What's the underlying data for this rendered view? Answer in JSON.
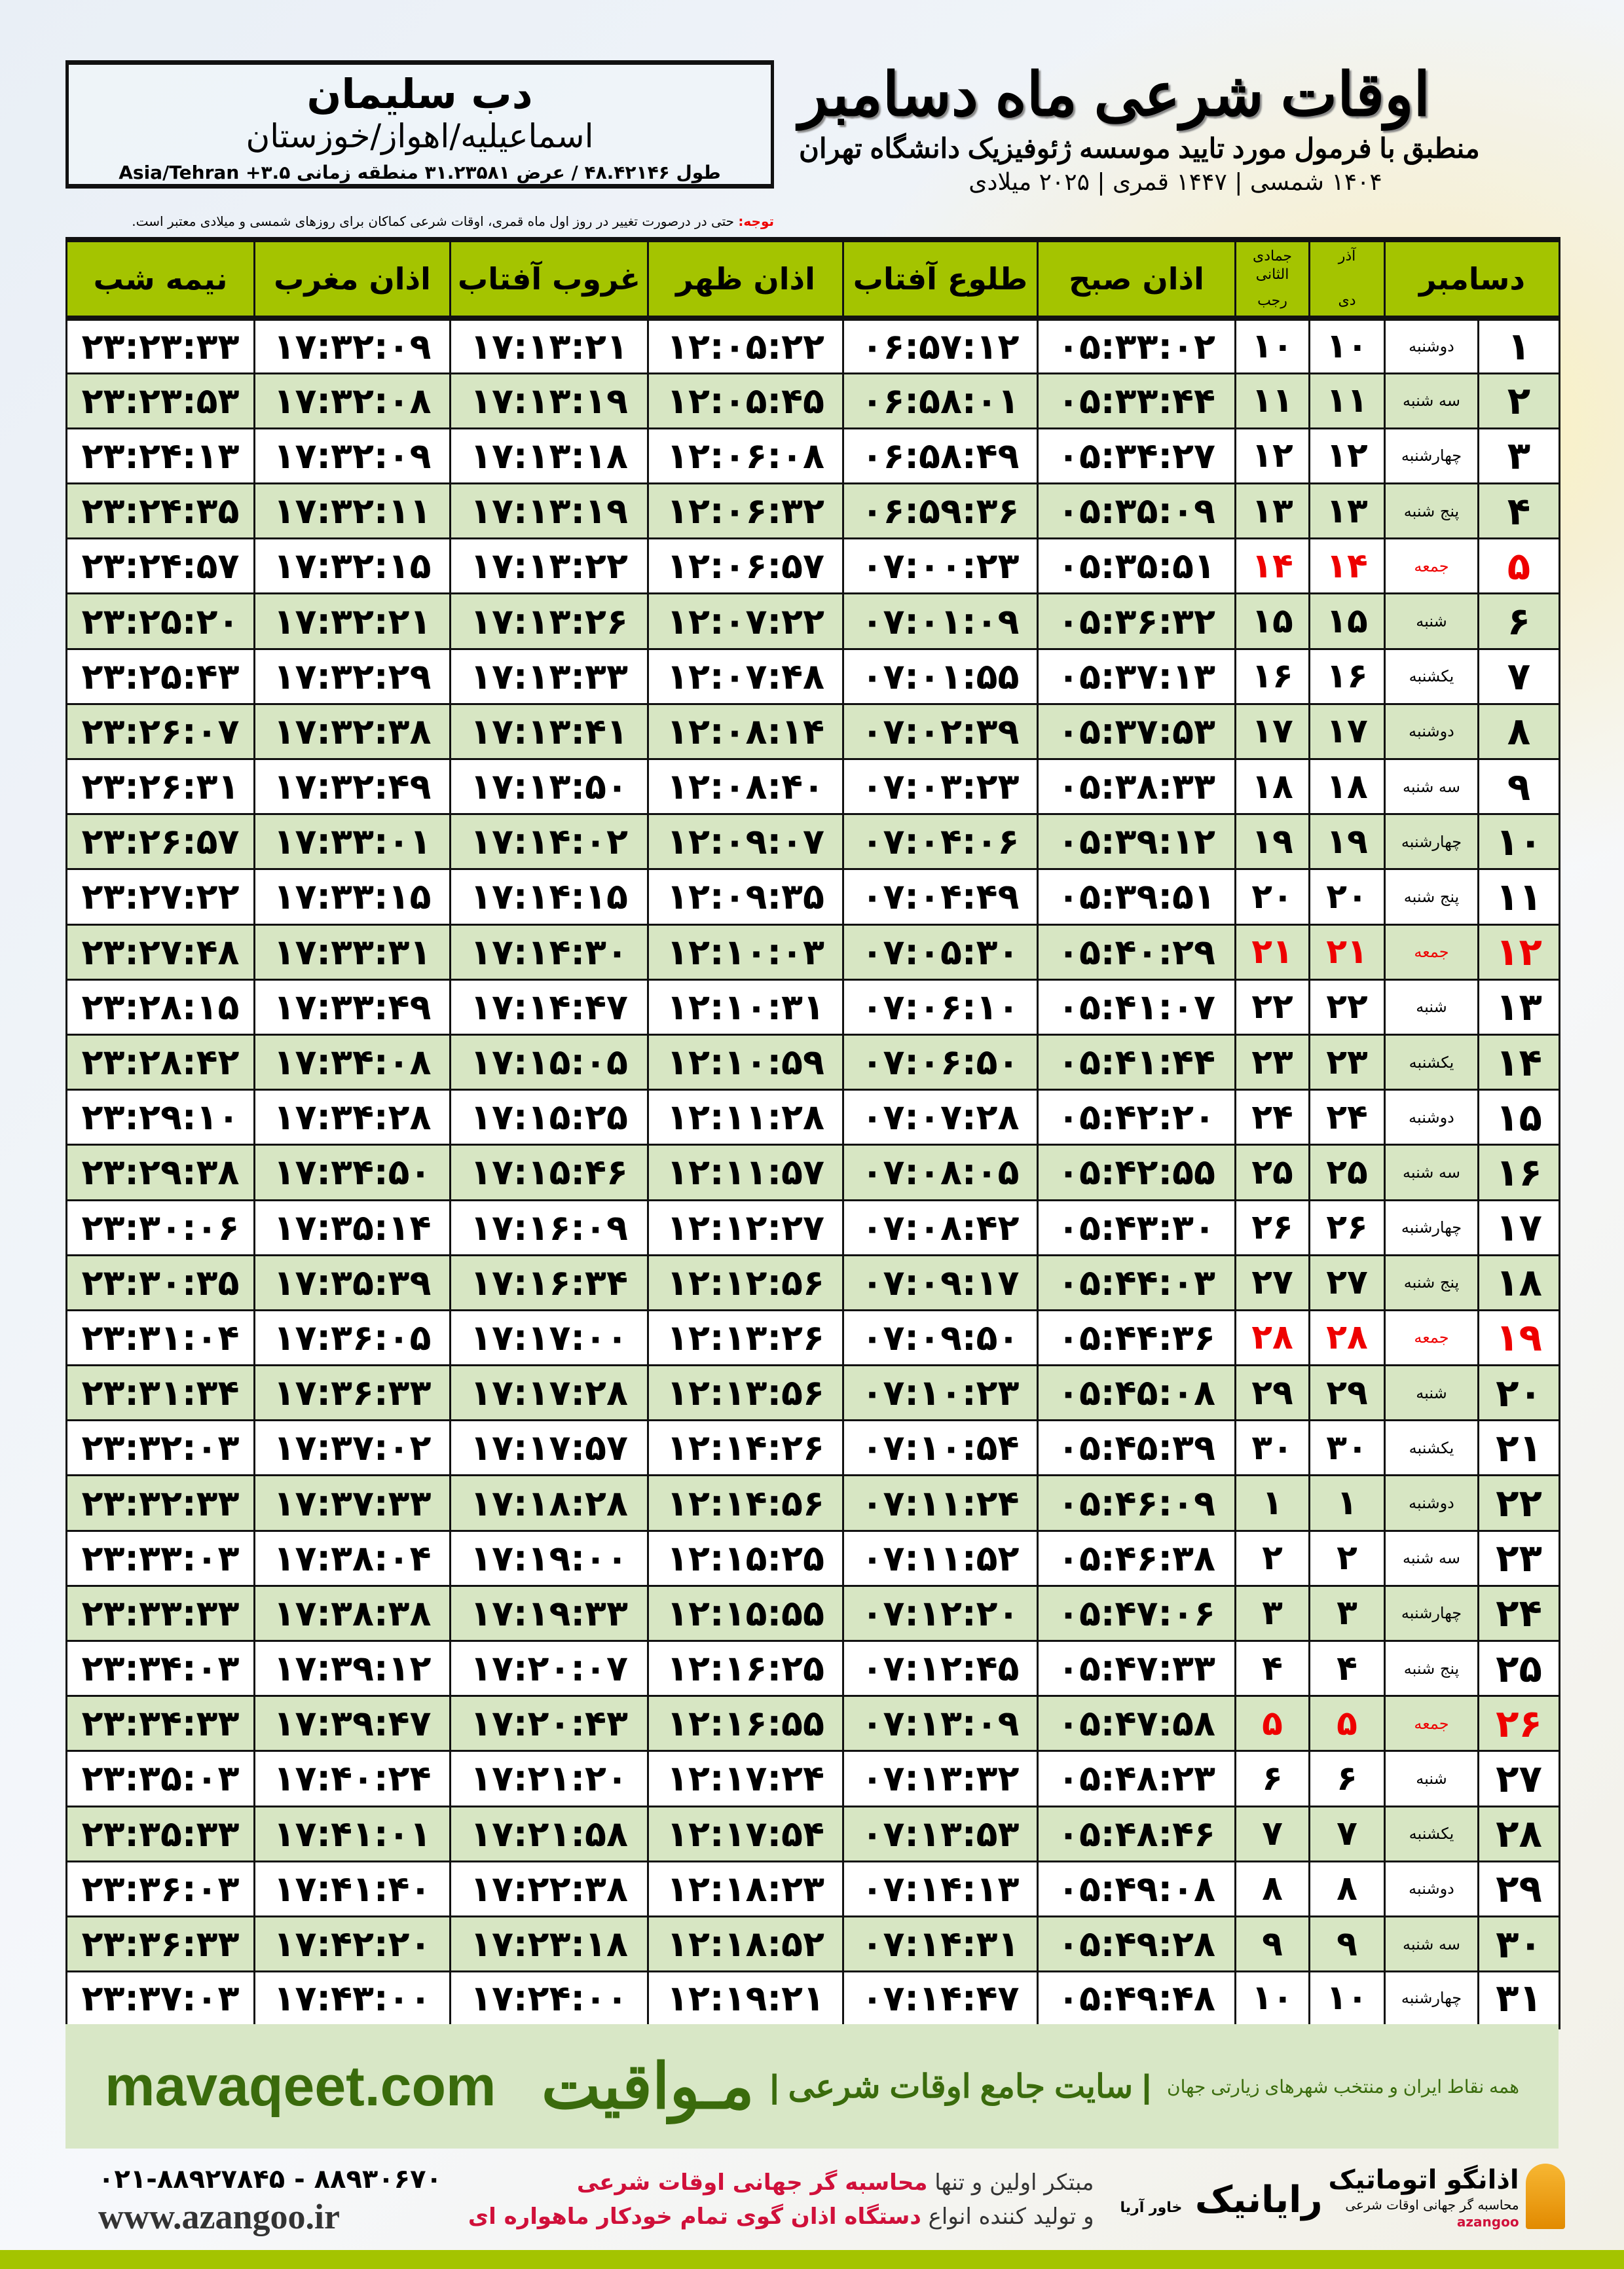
{
  "header": {
    "title": "اوقات شرعی ماه دسامبر",
    "subtitle": "منطبق با فرمول مورد تایید موسسه ژئوفیزیک دانشگاه تهران",
    "years": "۱۴۰۴ شمسی | ۱۴۴۷ قمری | ۲۰۲۵ میلادی"
  },
  "location": {
    "city": "دب سلیمان",
    "province": "اسماعیلیه/اهواز/خوزستان",
    "coords": "طول ۴۸.۴۲۱۴۶ / عرض ۳۱.۲۳۵۸۱ منطقه زمانی ۳.۵+ Asia/Tehran"
  },
  "note": {
    "label": "توجه:",
    "text": " حتی در درصورت تغییر در روز اول ماه قمری، اوقات شرعی کماکان برای روزهای شمسی و میلادی معتبر است."
  },
  "table": {
    "headers": {
      "month": "دسامبر",
      "persian_months": "آذر",
      "hijri_months": "جمادی الثانی",
      "dey": "دی",
      "rajab": "رجب",
      "sobh": "اذان صبح",
      "tolu": "طلوع آفتاب",
      "zohr": "اذان ظهر",
      "ghorub": "غروب آفتاب",
      "maghreb": "اذان مغرب",
      "nimeh": "نیمه شب"
    },
    "holiday_color": "#e00000",
    "rows": [
      [
        "۱",
        "دوشنبه",
        "۱۰",
        "۱۰",
        "۰۵:۳۳:۰۲",
        "۰۶:۵۷:۱۲",
        "۱۲:۰۵:۲۲",
        "۱۷:۱۳:۲۱",
        "۱۷:۳۲:۰۹",
        "۲۳:۲۳:۳۳"
      ],
      [
        "۲",
        "سه شنبه",
        "۱۱",
        "۱۱",
        "۰۵:۳۳:۴۴",
        "۰۶:۵۸:۰۱",
        "۱۲:۰۵:۴۵",
        "۱۷:۱۳:۱۹",
        "۱۷:۳۲:۰۸",
        "۲۳:۲۳:۵۳"
      ],
      [
        "۳",
        "چهارشنبه",
        "۱۲",
        "۱۲",
        "۰۵:۳۴:۲۷",
        "۰۶:۵۸:۴۹",
        "۱۲:۰۶:۰۸",
        "۱۷:۱۳:۱۸",
        "۱۷:۳۲:۰۹",
        "۲۳:۲۴:۱۳"
      ],
      [
        "۴",
        "پنج شنبه",
        "۱۳",
        "۱۳",
        "۰۵:۳۵:۰۹",
        "۰۶:۵۹:۳۶",
        "۱۲:۰۶:۳۲",
        "۱۷:۱۳:۱۹",
        "۱۷:۳۲:۱۱",
        "۲۳:۲۴:۳۵"
      ],
      [
        "۵",
        "جمعه",
        "۱۴",
        "۱۴",
        "۰۵:۳۵:۵۱",
        "۰۷:۰۰:۲۳",
        "۱۲:۰۶:۵۷",
        "۱۷:۱۳:۲۲",
        "۱۷:۳۲:۱۵",
        "۲۳:۲۴:۵۷"
      ],
      [
        "۶",
        "شنبه",
        "۱۵",
        "۱۵",
        "۰۵:۳۶:۳۲",
        "۰۷:۰۱:۰۹",
        "۱۲:۰۷:۲۲",
        "۱۷:۱۳:۲۶",
        "۱۷:۳۲:۲۱",
        "۲۳:۲۵:۲۰"
      ],
      [
        "۷",
        "یکشنبه",
        "۱۶",
        "۱۶",
        "۰۵:۳۷:۱۳",
        "۰۷:۰۱:۵۵",
        "۱۲:۰۷:۴۸",
        "۱۷:۱۳:۳۳",
        "۱۷:۳۲:۲۹",
        "۲۳:۲۵:۴۳"
      ],
      [
        "۸",
        "دوشنبه",
        "۱۷",
        "۱۷",
        "۰۵:۳۷:۵۳",
        "۰۷:۰۲:۳۹",
        "۱۲:۰۸:۱۴",
        "۱۷:۱۳:۴۱",
        "۱۷:۳۲:۳۸",
        "۲۳:۲۶:۰۷"
      ],
      [
        "۹",
        "سه شنبه",
        "۱۸",
        "۱۸",
        "۰۵:۳۸:۳۳",
        "۰۷:۰۳:۲۳",
        "۱۲:۰۸:۴۰",
        "۱۷:۱۳:۵۰",
        "۱۷:۳۲:۴۹",
        "۲۳:۲۶:۳۱"
      ],
      [
        "۱۰",
        "چهارشنبه",
        "۱۹",
        "۱۹",
        "۰۵:۳۹:۱۲",
        "۰۷:۰۴:۰۶",
        "۱۲:۰۹:۰۷",
        "۱۷:۱۴:۰۲",
        "۱۷:۳۳:۰۱",
        "۲۳:۲۶:۵۷"
      ],
      [
        "۱۱",
        "پنج شنبه",
        "۲۰",
        "۲۰",
        "۰۵:۳۹:۵۱",
        "۰۷:۰۴:۴۹",
        "۱۲:۰۹:۳۵",
        "۱۷:۱۴:۱۵",
        "۱۷:۳۳:۱۵",
        "۲۳:۲۷:۲۲"
      ],
      [
        "۱۲",
        "جمعه",
        "۲۱",
        "۲۱",
        "۰۵:۴۰:۲۹",
        "۰۷:۰۵:۳۰",
        "۱۲:۱۰:۰۳",
        "۱۷:۱۴:۳۰",
        "۱۷:۳۳:۳۱",
        "۲۳:۲۷:۴۸"
      ],
      [
        "۱۳",
        "شنبه",
        "۲۲",
        "۲۲",
        "۰۵:۴۱:۰۷",
        "۰۷:۰۶:۱۰",
        "۱۲:۱۰:۳۱",
        "۱۷:۱۴:۴۷",
        "۱۷:۳۳:۴۹",
        "۲۳:۲۸:۱۵"
      ],
      [
        "۱۴",
        "یکشنبه",
        "۲۳",
        "۲۳",
        "۰۵:۴۱:۴۴",
        "۰۷:۰۶:۵۰",
        "۱۲:۱۰:۵۹",
        "۱۷:۱۵:۰۵",
        "۱۷:۳۴:۰۸",
        "۲۳:۲۸:۴۲"
      ],
      [
        "۱۵",
        "دوشنبه",
        "۲۴",
        "۲۴",
        "۰۵:۴۲:۲۰",
        "۰۷:۰۷:۲۸",
        "۱۲:۱۱:۲۸",
        "۱۷:۱۵:۲۵",
        "۱۷:۳۴:۲۸",
        "۲۳:۲۹:۱۰"
      ],
      [
        "۱۶",
        "سه شنبه",
        "۲۵",
        "۲۵",
        "۰۵:۴۲:۵۵",
        "۰۷:۰۸:۰۵",
        "۱۲:۱۱:۵۷",
        "۱۷:۱۵:۴۶",
        "۱۷:۳۴:۵۰",
        "۲۳:۲۹:۳۸"
      ],
      [
        "۱۷",
        "چهارشنبه",
        "۲۶",
        "۲۶",
        "۰۵:۴۳:۳۰",
        "۰۷:۰۸:۴۲",
        "۱۲:۱۲:۲۷",
        "۱۷:۱۶:۰۹",
        "۱۷:۳۵:۱۴",
        "۲۳:۳۰:۰۶"
      ],
      [
        "۱۸",
        "پنج شنبه",
        "۲۷",
        "۲۷",
        "۰۵:۴۴:۰۳",
        "۰۷:۰۹:۱۷",
        "۱۲:۱۲:۵۶",
        "۱۷:۱۶:۳۴",
        "۱۷:۳۵:۳۹",
        "۲۳:۳۰:۳۵"
      ],
      [
        "۱۹",
        "جمعه",
        "۲۸",
        "۲۸",
        "۰۵:۴۴:۳۶",
        "۰۷:۰۹:۵۰",
        "۱۲:۱۳:۲۶",
        "۱۷:۱۷:۰۰",
        "۱۷:۳۶:۰۵",
        "۲۳:۳۱:۰۴"
      ],
      [
        "۲۰",
        "شنبه",
        "۲۹",
        "۲۹",
        "۰۵:۴۵:۰۸",
        "۰۷:۱۰:۲۳",
        "۱۲:۱۳:۵۶",
        "۱۷:۱۷:۲۸",
        "۱۷:۳۶:۳۳",
        "۲۳:۳۱:۳۴"
      ],
      [
        "۲۱",
        "یکشنبه",
        "۳۰",
        "۳۰",
        "۰۵:۴۵:۳۹",
        "۰۷:۱۰:۵۴",
        "۱۲:۱۴:۲۶",
        "۱۷:۱۷:۵۷",
        "۱۷:۳۷:۰۲",
        "۲۳:۳۲:۰۳"
      ],
      [
        "۲۲",
        "دوشنبه",
        "۱",
        "۱",
        "۰۵:۴۶:۰۹",
        "۰۷:۱۱:۲۴",
        "۱۲:۱۴:۵۶",
        "۱۷:۱۸:۲۸",
        "۱۷:۳۷:۳۳",
        "۲۳:۳۲:۳۳"
      ],
      [
        "۲۳",
        "سه شنبه",
        "۲",
        "۲",
        "۰۵:۴۶:۳۸",
        "۰۷:۱۱:۵۲",
        "۱۲:۱۵:۲۵",
        "۱۷:۱۹:۰۰",
        "۱۷:۳۸:۰۴",
        "۲۳:۳۳:۰۳"
      ],
      [
        "۲۴",
        "چهارشنبه",
        "۳",
        "۳",
        "۰۵:۴۷:۰۶",
        "۰۷:۱۲:۲۰",
        "۱۲:۱۵:۵۵",
        "۱۷:۱۹:۳۳",
        "۱۷:۳۸:۳۸",
        "۲۳:۳۳:۳۳"
      ],
      [
        "۲۵",
        "پنج شنبه",
        "۴",
        "۴",
        "۰۵:۴۷:۳۳",
        "۰۷:۱۲:۴۵",
        "۱۲:۱۶:۲۵",
        "۱۷:۲۰:۰۷",
        "۱۷:۳۹:۱۲",
        "۲۳:۳۴:۰۳"
      ],
      [
        "۲۶",
        "جمعه",
        "۵",
        "۵",
        "۰۵:۴۷:۵۸",
        "۰۷:۱۳:۰۹",
        "۱۲:۱۶:۵۵",
        "۱۷:۲۰:۴۳",
        "۱۷:۳۹:۴۷",
        "۲۳:۳۴:۳۳"
      ],
      [
        "۲۷",
        "شنبه",
        "۶",
        "۶",
        "۰۵:۴۸:۲۳",
        "۰۷:۱۳:۳۲",
        "۱۲:۱۷:۲۴",
        "۱۷:۲۱:۲۰",
        "۱۷:۴۰:۲۴",
        "۲۳:۳۵:۰۳"
      ],
      [
        "۲۸",
        "یکشنبه",
        "۷",
        "۷",
        "۰۵:۴۸:۴۶",
        "۰۷:۱۳:۵۳",
        "۱۲:۱۷:۵۴",
        "۱۷:۲۱:۵۸",
        "۱۷:۴۱:۰۱",
        "۲۳:۳۵:۳۳"
      ],
      [
        "۲۹",
        "دوشنبه",
        "۸",
        "۸",
        "۰۵:۴۹:۰۸",
        "۰۷:۱۴:۱۳",
        "۱۲:۱۸:۲۳",
        "۱۷:۲۲:۳۸",
        "۱۷:۴۱:۴۰",
        "۲۳:۳۶:۰۳"
      ],
      [
        "۳۰",
        "سه شنبه",
        "۹",
        "۹",
        "۰۵:۴۹:۲۸",
        "۰۷:۱۴:۳۱",
        "۱۲:۱۸:۵۲",
        "۱۷:۲۳:۱۸",
        "۱۷:۴۲:۲۰",
        "۲۳:۳۶:۳۳"
      ],
      [
        "۳۱",
        "چهارشنبه",
        "۱۰",
        "۱۰",
        "۰۵:۴۹:۴۸",
        "۰۷:۱۴:۴۷",
        "۱۲:۱۹:۲۱",
        "۱۷:۲۴:۰۰",
        "۱۷:۴۳:۰۰",
        "۲۳:۳۷:۰۳"
      ]
    ]
  },
  "banner": {
    "brand": "مـواقیت",
    "slogan": "| سایت جامع اوقات شرعی |",
    "slogan2": "همه نقاط ایران و منتخب شهرهای زیارتی جهان",
    "site": "mavaqeet.com"
  },
  "footer": {
    "phones": "۰۲۱-۸۸۹۲۷۸۴۵ - ۸۸۹۳۰۶۷۰",
    "website": "www.azangoo.ir",
    "promo_line1_a": "مبتکر اولین و تنها ",
    "promo_line1_b": "محاسبه گر جهانی اوقات شرعی",
    "promo_line2_a": "و تولید کننده انواع ",
    "promo_line2_b": "دستگاه اذان گوی تمام خودکار ماهواره ای",
    "rayanik": "رایانیک",
    "rayanik_sub": "خاور آریا",
    "azangoo_title": "اذانگو اتوماتیک",
    "azangoo_sub": "محاسبه گر جهانی اوقات شرعی",
    "azangoo_latin": "azangoo"
  }
}
